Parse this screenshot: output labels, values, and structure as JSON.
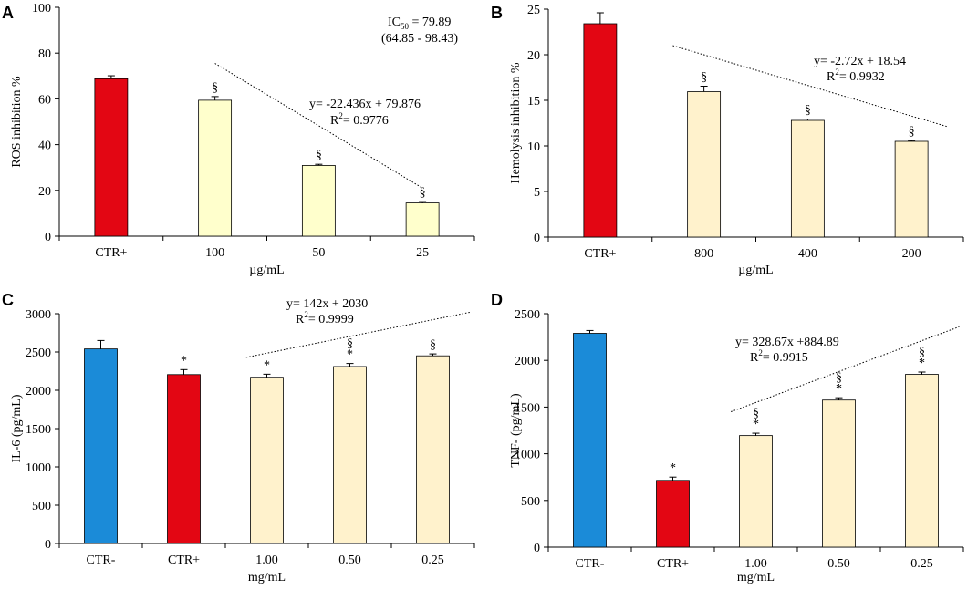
{
  "colors": {
    "red": "#E30613",
    "blue": "#1B8BD8",
    "yellow_light": "#FFFFCC",
    "cream": "#FFF2CC"
  },
  "chart_data": [
    {
      "panel": "A",
      "type": "bar",
      "categories": [
        "CTR+",
        "100",
        "50",
        "25"
      ],
      "values": [
        68.8,
        59.4,
        30.9,
        14.5
      ],
      "errors": [
        1.3,
        1.6,
        0.5,
        0.6
      ],
      "bar_colors": [
        "red",
        "yellow_light",
        "yellow_light",
        "yellow_light"
      ],
      "marks": [
        "",
        "§",
        "§",
        "§"
      ],
      "xlabel": "µg/mL",
      "ylabel": "ROS inhibition %",
      "ylim": [
        0,
        100
      ],
      "yticks": [
        "0",
        "20",
        "40",
        "60",
        "80",
        "100"
      ],
      "trendline": {
        "from_category": 1,
        "to_category": 3,
        "y_start": 75.5,
        "y_end": 21
      },
      "equation": "y= -22.436x + 79.876",
      "r_squared_label": "R",
      "r_squared_value": "= 0.9776",
      "ic50_label": "IC",
      "ic50_sub": "50",
      "ic50_value": " = 79.89",
      "ic50_range": "(64.85 - 98.43)"
    },
    {
      "panel": "B",
      "type": "bar",
      "categories": [
        "CTR+",
        "800",
        "400",
        "200"
      ],
      "values": [
        23.4,
        15.95,
        12.8,
        10.5
      ],
      "errors": [
        1.2,
        0.6,
        0.15,
        0.1
      ],
      "bar_colors": [
        "red",
        "cream",
        "cream",
        "cream"
      ],
      "marks": [
        "",
        "§",
        "§",
        "§"
      ],
      "xlabel": "µg/mL",
      "ylabel": "Hemolysis inhibition %",
      "ylim": [
        0,
        25
      ],
      "yticks": [
        "0",
        "5",
        "10",
        "15",
        "20",
        "25"
      ],
      "trendline": {
        "from_category": 0.7,
        "to_category": 3.35,
        "y_start": 21,
        "y_end": 12.1
      },
      "equation": "y= -2.72x + 18.54",
      "r_squared_label": "R",
      "r_squared_value": "= 0.9932"
    },
    {
      "panel": "C",
      "type": "bar",
      "categories": [
        "CTR-",
        "CTR+",
        "1.00",
        "0.50",
        "0.25"
      ],
      "values": [
        2540,
        2205,
        2170,
        2310,
        2450
      ],
      "errors": [
        110,
        65,
        40,
        40,
        25
      ],
      "bar_colors": [
        "blue",
        "red",
        "cream",
        "cream",
        "cream"
      ],
      "marks": [
        [],
        [
          "*"
        ],
        [
          "*"
        ],
        [
          "§",
          "*"
        ],
        [
          "§"
        ]
      ],
      "xlabel": "mg/mL",
      "ylabel": "IL-6 (pg/mL)",
      "ylim": [
        0,
        3000
      ],
      "yticks": [
        "0",
        "500",
        "1000",
        "1500",
        "2000",
        "2500",
        "3000"
      ],
      "trendline": {
        "from_category": 1.75,
        "to_category": 4.45,
        "y_start": 2430,
        "y_end": 3020
      },
      "equation": "y= 142x + 2030",
      "r_squared_label": "R",
      "r_squared_value": "= 0.9999"
    },
    {
      "panel": "D",
      "type": "bar",
      "categories": [
        "CTR-",
        "CTR+",
        "1.00",
        "0.50",
        "0.25"
      ],
      "values": [
        2290,
        715,
        1195,
        1575,
        1850
      ],
      "errors": [
        30,
        35,
        25,
        25,
        25
      ],
      "bar_colors": [
        "blue",
        "red",
        "cream",
        "cream",
        "cream"
      ],
      "marks": [
        [],
        [
          "*"
        ],
        [
          "§",
          "*"
        ],
        [
          "§",
          "*"
        ],
        [
          "§",
          "*"
        ]
      ],
      "xlabel": "mg/mL",
      "ylabel": "TNF- (pg/mL)",
      "ylim": [
        0,
        2500
      ],
      "yticks": [
        "0",
        "500",
        "1000",
        "1500",
        "2000",
        "2500"
      ],
      "trendline": {
        "from_category": 1.7,
        "to_category": 4.45,
        "y_start": 1450,
        "y_end": 2360
      },
      "equation": "y= 328.67x +884.89",
      "r_squared_label": "R",
      "r_squared_value": "= 0.9915"
    }
  ]
}
